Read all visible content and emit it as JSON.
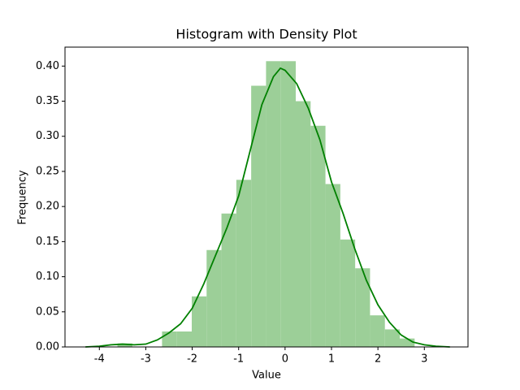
{
  "chart_data": {
    "type": "histogram",
    "title": "Histogram with Density Plot",
    "x_label": "Value",
    "y_label": "Frequency",
    "bins": [
      -3.61,
      -3.29,
      -2.97,
      -2.65,
      -2.33,
      -2.01,
      -1.69,
      -1.37,
      -1.05,
      -0.73,
      -0.41,
      -0.09,
      0.23,
      0.55,
      0.87,
      1.19,
      1.51,
      1.83,
      2.15,
      2.47,
      2.79
    ],
    "values": [
      0.005,
      0,
      0,
      0.022,
      0.022,
      0.072,
      0.138,
      0.19,
      0.238,
      0.372,
      0.407,
      0.407,
      0.35,
      0.315,
      0.232,
      0.153,
      0.112,
      0.045,
      0.025,
      0.012
    ],
    "color": "#9ccf98",
    "density": {
      "color": "#008000",
      "x": [
        -4.3,
        -4.0,
        -3.75,
        -3.5,
        -3.25,
        -3.0,
        -2.75,
        -2.5,
        -2.25,
        -2.0,
        -1.75,
        -1.5,
        -1.25,
        -1.0,
        -0.75,
        -0.5,
        -0.25,
        -0.1,
        0,
        0.25,
        0.5,
        0.75,
        1.0,
        1.25,
        1.5,
        1.75,
        2.0,
        2.25,
        2.5,
        2.75,
        3.0,
        3.25,
        3.55
      ],
      "values": [
        0.0,
        0.001,
        0.003,
        0.004,
        0.003,
        0.004,
        0.01,
        0.02,
        0.033,
        0.055,
        0.09,
        0.13,
        0.17,
        0.215,
        0.28,
        0.345,
        0.385,
        0.397,
        0.394,
        0.375,
        0.34,
        0.295,
        0.235,
        0.19,
        0.14,
        0.095,
        0.06,
        0.035,
        0.017,
        0.007,
        0.003,
        0.001,
        0.0
      ]
    },
    "xlim": [
      -4.74,
      3.94
    ],
    "ylim": [
      0,
      0.427
    ],
    "xticks": [
      -4,
      -3,
      -2,
      -1,
      0,
      1,
      2,
      3
    ],
    "yticks": [
      {
        "value": 0,
        "label": "0.00"
      },
      {
        "value": 0.05,
        "label": "0.05"
      },
      {
        "value": 0.1,
        "label": "0.10"
      },
      {
        "value": 0.15,
        "label": "0.15"
      },
      {
        "value": 0.2,
        "label": "0.20"
      },
      {
        "value": 0.25,
        "label": "0.25"
      },
      {
        "value": 0.3,
        "label": "0.30"
      },
      {
        "value": 0.35,
        "label": "0.35"
      },
      {
        "value": 0.4,
        "label": "0.40"
      }
    ]
  }
}
